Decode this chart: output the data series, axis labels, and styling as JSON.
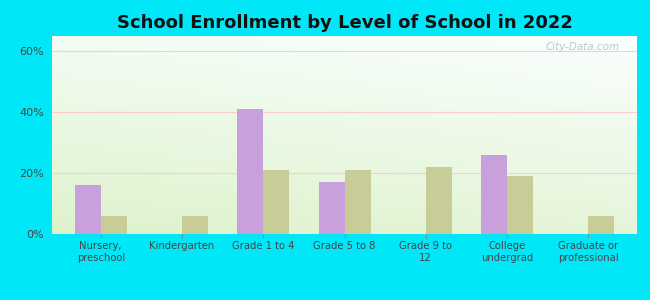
{
  "title": "School Enrollment by Level of School in 2022",
  "categories": [
    "Nursery,\npreschool",
    "Kindergarten",
    "Grade 1 to 4",
    "Grade 5 to 8",
    "Grade 9 to\n12",
    "College\nundergrad",
    "Graduate or\nprofessional"
  ],
  "zip_values": [
    16.0,
    0.0,
    41.0,
    17.0,
    0.0,
    26.0,
    0.0
  ],
  "tn_values": [
    6.0,
    6.0,
    21.0,
    21.0,
    22.0,
    19.0,
    6.0
  ],
  "zip_color": "#c8a0dc",
  "tn_color": "#c8cc96",
  "background_outer": "#00e8f8",
  "ylim": [
    0,
    65
  ],
  "yticks": [
    0,
    20,
    40,
    60
  ],
  "ytick_labels": [
    "0%",
    "20%",
    "40%",
    "60%"
  ],
  "bar_width": 0.32,
  "title_fontsize": 13,
  "watermark": "City-Data.com"
}
